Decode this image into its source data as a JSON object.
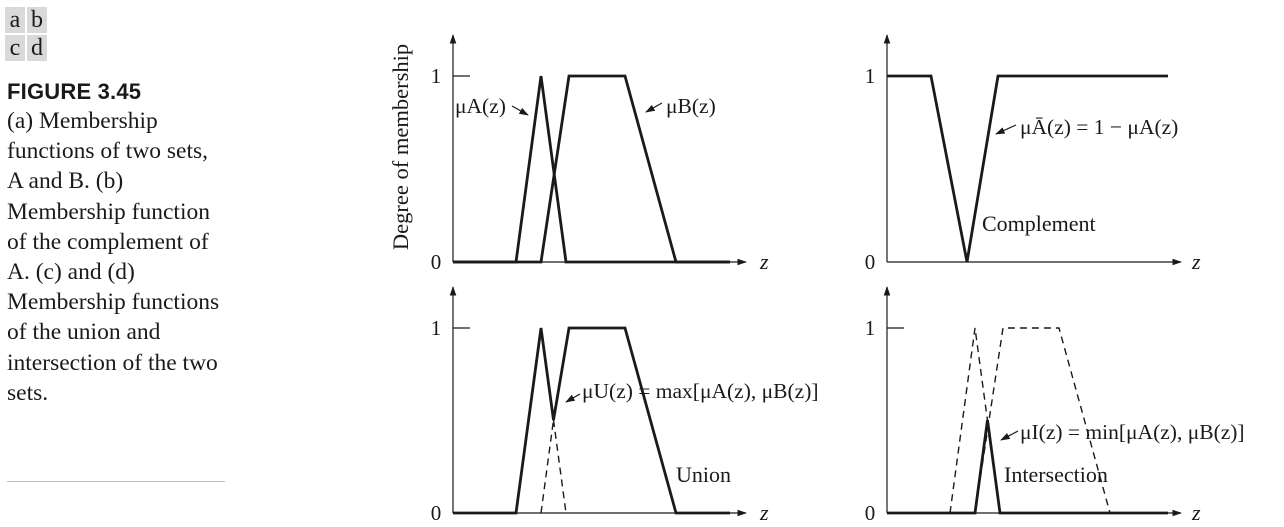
{
  "panel_key": [
    "a",
    "b",
    "c",
    "d"
  ],
  "figure_label": "FIGURE 3.45",
  "caption": "(a) Membership functions of two sets, A and B. (b) Membership function of the complement of A. (c) and (d) Membership functions of the union and intersection of the two sets.",
  "y_axis_title": "Degree of membership",
  "x_label": "z",
  "tick_one": "1",
  "tick_zero": "0",
  "panels": {
    "a": {
      "label_a": "μA(z)",
      "label_b": "μB(z)"
    },
    "b": {
      "label": "μĀ(z) = 1 − μA(z)",
      "name": "Complement"
    },
    "c": {
      "label": "μU(z) = max[μA(z), μB(z)]",
      "name": "Union"
    },
    "d": {
      "label": "μI(z) = min[μA(z), μB(z)]",
      "name": "Intersection"
    }
  },
  "membership_functions": {
    "z_domain": [
      0,
      1
    ],
    "A": [
      [
        0.2,
        0
      ],
      [
        0.3,
        1
      ],
      [
        0.4,
        0
      ]
    ],
    "B": [
      [
        0.3,
        0
      ],
      [
        0.4,
        1
      ],
      [
        0.6,
        0.9999
      ],
      [
        0.8,
        0
      ]
    ],
    "B_plateau": [
      0.4,
      0.6
    ]
  },
  "colors": {
    "ink": "#1a1a1a",
    "key_bg": "#d9d9d9",
    "rule": "#bdbdbd"
  }
}
